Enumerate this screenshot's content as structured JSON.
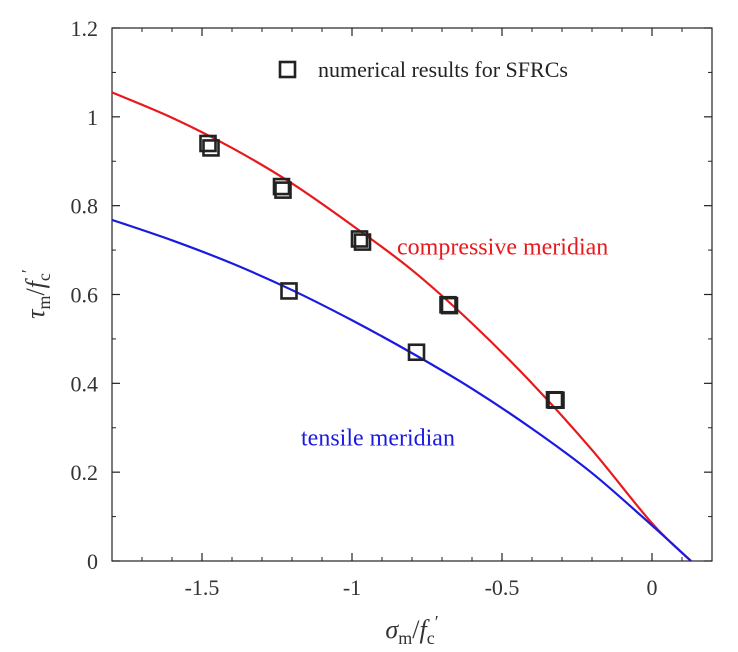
{
  "chart_data": {
    "type": "scatter",
    "title": "",
    "xlabel": {
      "main": "σ",
      "sub": "m",
      "sep": "/",
      "den": "f",
      "den_sub": "c",
      "den_prime": "′"
    },
    "ylabel": {
      "main": "τ",
      "sub": "m",
      "sep": "/",
      "den": "f",
      "den_sub": "c",
      "den_prime": "′"
    },
    "xlim": [
      -1.8,
      0.2
    ],
    "ylim": [
      0,
      1.2
    ],
    "grid": false,
    "legend_position": "top-right",
    "xticks": [
      {
        "value": -1.5,
        "label": "-1.5"
      },
      {
        "value": -1,
        "label": "-1"
      },
      {
        "value": -0.5,
        "label": "-0.5"
      },
      {
        "value": 0,
        "label": "0"
      }
    ],
    "yticks": [
      {
        "value": 0,
        "label": "0"
      },
      {
        "value": 0.2,
        "label": "0.2"
      },
      {
        "value": 0.4,
        "label": "0.4"
      },
      {
        "value": 0.6,
        "label": "0.6"
      },
      {
        "value": 0.8,
        "label": "0.8"
      },
      {
        "value": 1,
        "label": "1"
      },
      {
        "value": 1.2,
        "label": "1.2"
      }
    ],
    "series": [
      {
        "name": "numerical results for SFRCs",
        "kind": "scatter",
        "marker": "square",
        "color": "#222222",
        "points": [
          {
            "x": -1.48,
            "y": 0.94
          },
          {
            "x": -1.47,
            "y": 0.93
          },
          {
            "x": -1.235,
            "y": 0.843
          },
          {
            "x": -1.23,
            "y": 0.835
          },
          {
            "x": -0.975,
            "y": 0.725
          },
          {
            "x": -0.965,
            "y": 0.718
          },
          {
            "x": -1.21,
            "y": 0.608
          },
          {
            "x": -0.785,
            "y": 0.47
          },
          {
            "x": -0.68,
            "y": 0.577
          },
          {
            "x": -0.675,
            "y": 0.575
          },
          {
            "x": -0.325,
            "y": 0.363
          },
          {
            "x": -0.32,
            "y": 0.362
          }
        ]
      },
      {
        "name": "compressive meridian",
        "kind": "line",
        "color": "#e8191c",
        "points": [
          {
            "x": -1.8,
            "y": 1.055
          },
          {
            "x": -1.6,
            "y": 0.998
          },
          {
            "x": -1.4,
            "y": 0.93
          },
          {
            "x": -1.2,
            "y": 0.85
          },
          {
            "x": -1.0,
            "y": 0.756
          },
          {
            "x": -0.8,
            "y": 0.655
          },
          {
            "x": -0.6,
            "y": 0.535
          },
          {
            "x": -0.4,
            "y": 0.4
          },
          {
            "x": -0.2,
            "y": 0.25
          },
          {
            "x": 0.0,
            "y": 0.085
          },
          {
            "x": 0.13,
            "y": 0.0
          }
        ]
      },
      {
        "name": "tensile meridian",
        "kind": "line",
        "color": "#1a1ae0",
        "points": [
          {
            "x": -1.8,
            "y": 0.768
          },
          {
            "x": -1.6,
            "y": 0.722
          },
          {
            "x": -1.4,
            "y": 0.67
          },
          {
            "x": -1.2,
            "y": 0.61
          },
          {
            "x": -1.0,
            "y": 0.542
          },
          {
            "x": -0.8,
            "y": 0.468
          },
          {
            "x": -0.6,
            "y": 0.388
          },
          {
            "x": -0.4,
            "y": 0.298
          },
          {
            "x": -0.2,
            "y": 0.198
          },
          {
            "x": 0.0,
            "y": 0.08
          },
          {
            "x": 0.13,
            "y": 0.0
          }
        ]
      }
    ],
    "annotations": [
      {
        "text": "compressive meridian",
        "color": "#e8191c",
        "x": -0.85,
        "y": 0.69
      },
      {
        "text": "tensile meridian",
        "color": "#1a1ae0",
        "x": -1.17,
        "y": 0.26
      }
    ]
  }
}
